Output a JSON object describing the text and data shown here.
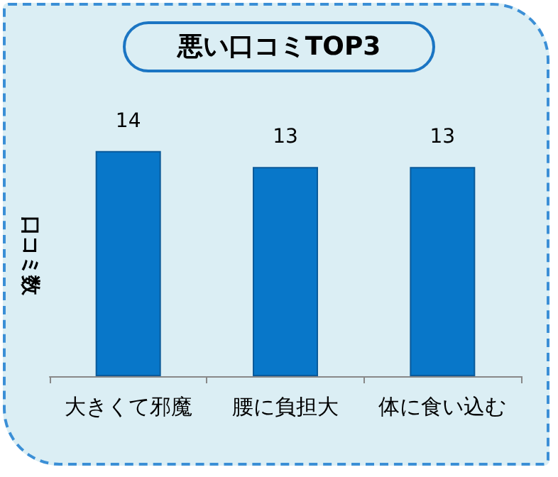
{
  "chart_data": {
    "type": "bar",
    "title": "悪い口コミTOP3",
    "ylabel": "口コミ数",
    "categories": [
      "大きくて邪魔",
      "腰に負担大",
      "体に食い込む"
    ],
    "values": [
      14,
      13,
      13
    ],
    "color": "#0877c9",
    "data_labels": true
  }
}
